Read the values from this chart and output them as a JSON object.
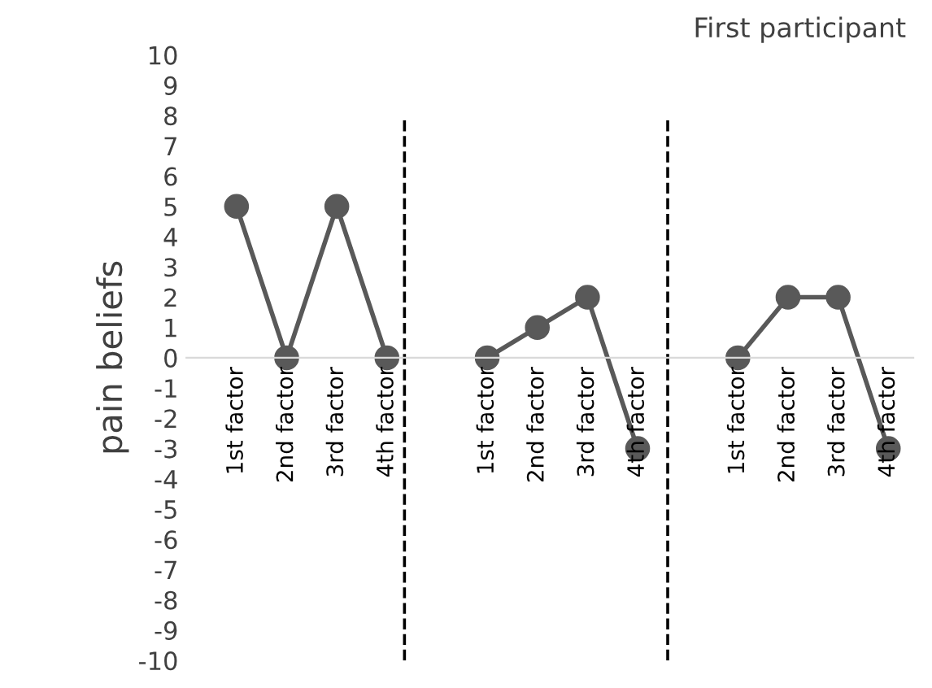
{
  "chart_data": {
    "type": "line",
    "title": "First participant",
    "ylabel": "pain beliefs",
    "categories": [
      "1st factor",
      "2nd factor",
      "3rd factor",
      "4th factor",
      null,
      "1st factor",
      "2nd factor",
      "3rd factor",
      "4th factor",
      null,
      "1st factor",
      "2nd factor",
      "3rd factor",
      "4th factor"
    ],
    "series": [
      {
        "color": "#595959",
        "values": [
          5,
          0,
          5,
          0,
          null,
          0,
          1,
          2,
          -3,
          null,
          0,
          2,
          2,
          -3
        ]
      }
    ],
    "ylim": [
      -10,
      10
    ],
    "yticks": [
      -10,
      -9,
      -8,
      -7,
      -6,
      -5,
      -4,
      -3,
      -2,
      -1,
      0,
      1,
      2,
      3,
      4,
      5,
      6,
      7,
      8,
      9,
      10
    ],
    "marker": "circle",
    "line_style": "solid",
    "grid": false,
    "legend": false
  }
}
